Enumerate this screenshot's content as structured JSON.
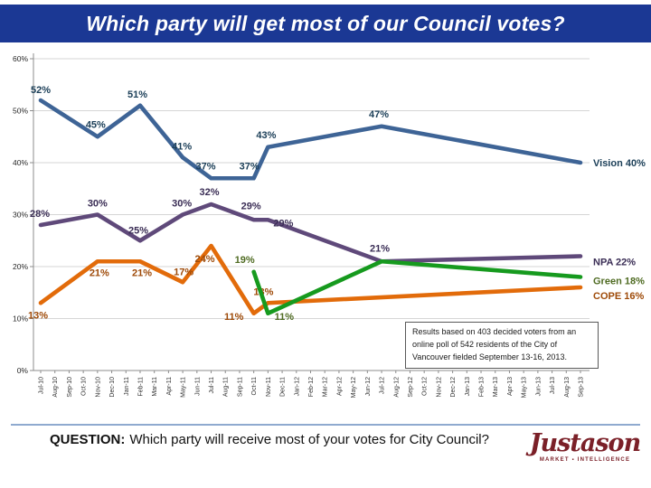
{
  "title": {
    "text": "Which party will get most of our Council votes?"
  },
  "question": {
    "prefix": "QUESTION:",
    "text": "Which party will receive most of your votes for City Council?"
  },
  "logo": {
    "name": "Justason",
    "sub": "MARKET ▪ INTELLIGENCE"
  },
  "colors": {
    "title_bar": "#1B3894",
    "divider": "#8FAACF",
    "vision": "#3E6496",
    "npa": "#5F497A",
    "cope": "#E26B0A",
    "green": "#169A1E"
  },
  "chart_data": {
    "type": "line",
    "title": "",
    "xlabel": "",
    "ylabel": "",
    "grid": true,
    "note": "Results based on 403 decided voters from an online poll  of 542 residents of the City of Vancouver fielded September 13-16, 2013.",
    "x_categories": [
      "Jul-10",
      "Aug-10",
      "Sep-10",
      "Oct-10",
      "Nov-10",
      "Dec-10",
      "Jan-11",
      "Feb-11",
      "Mar-11",
      "Apr-11",
      "May-11",
      "Jun-11",
      "Jul-11",
      "Aug-11",
      "Sep-11",
      "Oct-11",
      "Nov-11",
      "Dec-11",
      "Jan-12",
      "Feb-12",
      "Mar-12",
      "Apr-12",
      "May-12",
      "Jun-12",
      "Jul-12",
      "Aug-12",
      "Sep-12",
      "Oct-12",
      "Nov-12",
      "Dec-12",
      "Jan-13",
      "Feb-13",
      "Mar-13",
      "Apr-13",
      "May-13",
      "Jun-13",
      "Jul-13",
      "Aug-13",
      "Sep-13"
    ],
    "y_axis": {
      "min": 0,
      "max": 60,
      "tick_step": 10,
      "tick_labels": [
        "0%",
        "10%",
        "20%",
        "30%",
        "40%",
        "50%",
        "60%"
      ]
    },
    "series": [
      {
        "name": "Vision",
        "color": "#3E6496",
        "label_color": "#1D4059",
        "end_label": "Vision 40%",
        "end_dy": 0,
        "points": [
          {
            "i": 0,
            "v": 52,
            "label": "52%",
            "dx": 0,
            "dy": -8
          },
          {
            "i": 4,
            "v": 45,
            "label": "45%",
            "dx": -2,
            "dy": -10
          },
          {
            "i": 7,
            "v": 51,
            "label": "51%",
            "dx": -3,
            "dy": -9
          },
          {
            "i": 10,
            "v": 41,
            "label": "41%",
            "dx": -1,
            "dy": -9
          },
          {
            "i": 12,
            "v": 37,
            "label": "37%",
            "dx": -6,
            "dy": -10
          },
          {
            "i": 15,
            "v": 37,
            "label": "37%",
            "dx": -5,
            "dy": -10
          },
          {
            "i": 16,
            "v": 43,
            "label": "43%",
            "dx": -2,
            "dy": -10
          },
          {
            "i": 24,
            "v": 47,
            "label": "47%",
            "dx": -3,
            "dy": -10
          },
          {
            "i": 38,
            "v": 40,
            "label": null,
            "dx": 0,
            "dy": 0
          }
        ]
      },
      {
        "name": "NPA",
        "color": "#5F497A",
        "label_color": "#3A2D55",
        "end_label": "NPA 22%",
        "end_dy": 6,
        "points": [
          {
            "i": 0,
            "v": 28,
            "label": "28%",
            "dx": -1,
            "dy": -9
          },
          {
            "i": 4,
            "v": 30,
            "label": "30%",
            "dx": 0,
            "dy": -9
          },
          {
            "i": 7,
            "v": 25,
            "label": "25%",
            "dx": -2,
            "dy": -8
          },
          {
            "i": 10,
            "v": 30,
            "label": "30%",
            "dx": -1,
            "dy": -9
          },
          {
            "i": 12,
            "v": 32,
            "label": "32%",
            "dx": -2,
            "dy": -10
          },
          {
            "i": 15,
            "v": 29,
            "label": "29%",
            "dx": -3,
            "dy": -12
          },
          {
            "i": 16,
            "v": 29,
            "label": "29%",
            "dx": 17,
            "dy": 7
          },
          {
            "i": 24,
            "v": 21,
            "label": "21%",
            "dx": -2,
            "dy": -11
          },
          {
            "i": 38,
            "v": 22,
            "label": null,
            "dx": 0,
            "dy": 0
          }
        ]
      },
      {
        "name": "COPE",
        "color": "#E26B0A",
        "label_color": "#9E4A08",
        "end_label": "COPE 16%",
        "end_dy": 9,
        "points": [
          {
            "i": 0,
            "v": 13,
            "label": "13%",
            "dx": -3,
            "dy": 17
          },
          {
            "i": 4,
            "v": 21,
            "label": "21%",
            "dx": 2,
            "dy": 16
          },
          {
            "i": 7,
            "v": 21,
            "label": "21%",
            "dx": 2,
            "dy": 16
          },
          {
            "i": 10,
            "v": 17,
            "label": "17%",
            "dx": 1,
            "dy": -8
          },
          {
            "i": 12,
            "v": 24,
            "label": "24%",
            "dx": -7,
            "dy": 18
          },
          {
            "i": 15,
            "v": 11,
            "label": "11%",
            "dx": -22,
            "dy": 7
          },
          {
            "i": 16,
            "v": 13,
            "label": "13%",
            "dx": -5,
            "dy": -9
          },
          {
            "i": 38,
            "v": 16,
            "label": null,
            "dx": 0,
            "dy": 0
          }
        ]
      },
      {
        "name": "Green",
        "color": "#169A1E",
        "label_color": "#4F6B22",
        "end_label": "Green 18%",
        "end_dy": 4,
        "points": [
          {
            "i": 15,
            "v": 19,
            "label": "19%",
            "dx": -10,
            "dy": -10
          },
          {
            "i": 16,
            "v": 11,
            "label": "11%",
            "dx": 18,
            "dy": 7
          },
          {
            "i": 24,
            "v": 21,
            "label": null,
            "dx": 0,
            "dy": 0
          },
          {
            "i": 38,
            "v": 18,
            "label": null,
            "dx": 0,
            "dy": 0
          }
        ]
      }
    ]
  }
}
